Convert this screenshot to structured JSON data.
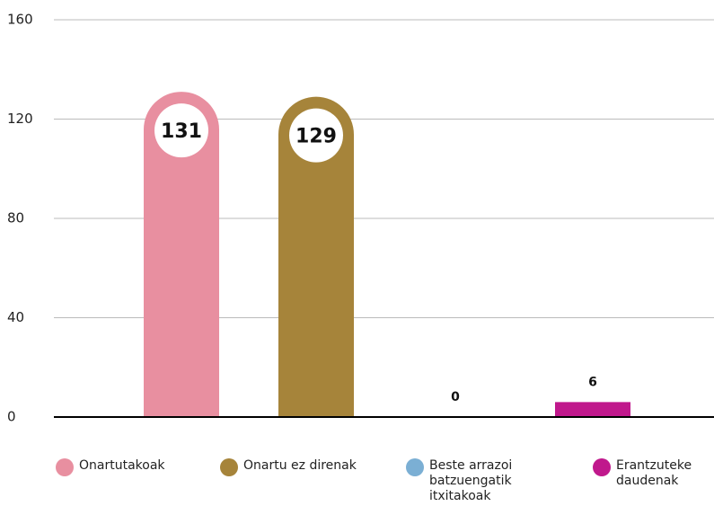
{
  "chart_data": {
    "type": "bar",
    "series": [
      {
        "name": "Onartutakoak",
        "color": "#e88fa0",
        "values": [
          131
        ]
      },
      {
        "name": "Onartu ez direnak",
        "color": "#a6843a",
        "values": [
          129
        ]
      },
      {
        "name": "Beste arrazoi batzuengatik itxitakoak",
        "color": "#7bafd4",
        "values": [
          0
        ]
      },
      {
        "name": "Erantzuteke daudenak",
        "color": "#c0188c",
        "values": [
          6
        ]
      }
    ],
    "ylim": [
      0,
      160
    ],
    "yticks": [
      0,
      40,
      80,
      120,
      160
    ],
    "grid": true,
    "legend": "bottom"
  }
}
